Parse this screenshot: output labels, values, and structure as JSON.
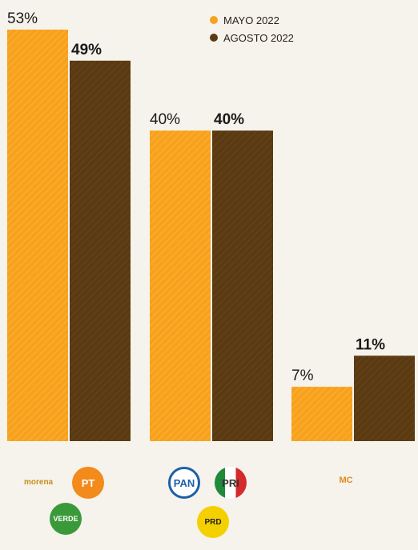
{
  "legend": {
    "items": [
      {
        "label": "MAYO 2022",
        "color": "#f7a11c"
      },
      {
        "label": "AGOSTO 2022",
        "color": "#5a3a12"
      }
    ]
  },
  "logos": {
    "group1": {
      "morena": "morena",
      "pt": "PT",
      "verde": "VERDE"
    },
    "group2": {
      "pan": "PAN",
      "pri": "PRI",
      "prd": "PRD"
    },
    "group3": {
      "mc": "MC"
    }
  },
  "chart_data": {
    "type": "bar",
    "categories": [
      "Morena-PT-Verde",
      "PAN-PRI-PRD",
      "MC"
    ],
    "series": [
      {
        "name": "MAYO 2022",
        "values": [
          53,
          40,
          7
        ],
        "labels": [
          "53%",
          "40%",
          "7%"
        ],
        "color": "#f7a11c"
      },
      {
        "name": "AGOSTO 2022",
        "values": [
          49,
          40,
          11
        ],
        "labels": [
          "49%",
          "40%",
          "11%"
        ],
        "color": "#5a3a12"
      }
    ],
    "ylim": [
      0,
      53
    ],
    "grid": false,
    "legend": "top-right"
  }
}
